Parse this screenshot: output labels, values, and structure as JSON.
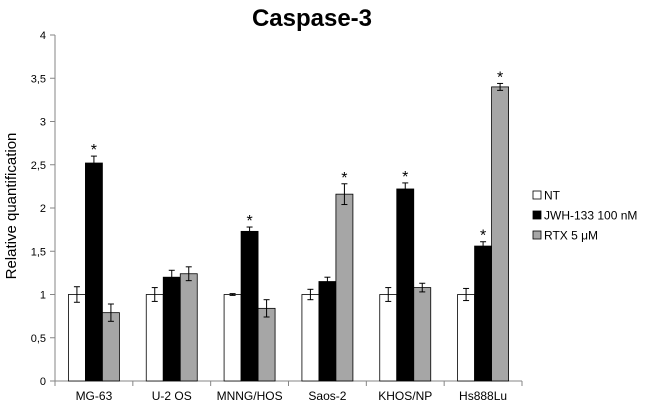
{
  "chart_data": {
    "type": "bar",
    "title": "Caspase-3",
    "xlabel": "",
    "ylabel": "Relative quantification",
    "ylim": [
      0,
      4
    ],
    "yticks": [
      "0",
      "0,5",
      "1",
      "1,5",
      "2",
      "2,5",
      "3",
      "3,5",
      "4"
    ],
    "grid": false,
    "legend_position": "right",
    "categories": [
      "MG-63",
      "U-2 OS",
      "MNNG/HOS",
      "Saos-2",
      "KHOS/NP",
      "Hs888Lu"
    ],
    "series": [
      {
        "name": "NT",
        "color": "#ffffff",
        "values": [
          1.0,
          1.0,
          1.0,
          1.0,
          1.0,
          1.0
        ],
        "errors": [
          0.09,
          0.08,
          0.01,
          0.06,
          0.08,
          0.07
        ],
        "significant": [
          false,
          false,
          false,
          false,
          false,
          false
        ]
      },
      {
        "name": "JWH-133 100 nM",
        "color": "#000000",
        "values": [
          2.52,
          1.2,
          1.73,
          1.15,
          2.22,
          1.56
        ],
        "errors": [
          0.08,
          0.08,
          0.05,
          0.05,
          0.07,
          0.05
        ],
        "significant": [
          true,
          false,
          true,
          false,
          true,
          true
        ]
      },
      {
        "name": "RTX 5 μM",
        "color": "#a6a6a6",
        "values": [
          0.79,
          1.24,
          0.84,
          2.16,
          1.08,
          3.4
        ],
        "errors": [
          0.1,
          0.08,
          0.1,
          0.12,
          0.05,
          0.04
        ],
        "significant": [
          false,
          false,
          false,
          true,
          false,
          true
        ]
      }
    ],
    "significance_marker": "*"
  }
}
